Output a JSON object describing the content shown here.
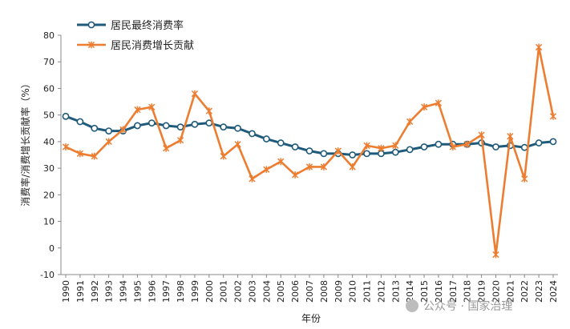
{
  "chart_data": {
    "type": "line",
    "xlabel": "年份",
    "ylabel": "消费率/消费增长贡献率（%）",
    "ylim": [
      -10,
      80
    ],
    "yticks": [
      -10,
      0,
      10,
      20,
      30,
      40,
      50,
      60,
      70,
      80
    ],
    "grid": false,
    "legend_position": "top-left",
    "x": [
      "1990",
      "1991",
      "1992",
      "1993",
      "1994",
      "1995",
      "1996",
      "1997",
      "1998",
      "1999",
      "2000",
      "2001",
      "2002",
      "2003",
      "2004",
      "2005",
      "2006",
      "2007",
      "2008",
      "2009",
      "2010",
      "2011",
      "2012",
      "2013",
      "2014",
      "2015",
      "2016",
      "2017",
      "2018",
      "2019",
      "2020",
      "2021",
      "2022",
      "2023",
      "2024"
    ],
    "series": [
      {
        "name": "居民最终消费率",
        "color": "#1f5a7a",
        "marker": "circle",
        "values": [
          49.5,
          47.5,
          45,
          44,
          44,
          46,
          47,
          46,
          45.5,
          46.5,
          47,
          45.5,
          45,
          43,
          41,
          39.5,
          38,
          36.5,
          35.5,
          35.5,
          35,
          35.5,
          35.5,
          36,
          37,
          38,
          39,
          39,
          39,
          39.5,
          38,
          38.5,
          37.8,
          39.5,
          40
        ]
      },
      {
        "name": "居民消费增长贡献",
        "color": "#ed7d31",
        "marker": "x",
        "values": [
          38,
          35.5,
          34.5,
          40,
          44.5,
          52,
          53,
          37.5,
          40.5,
          58,
          51.5,
          34.5,
          39,
          26,
          29.5,
          32.5,
          27.5,
          30.5,
          30.5,
          36.5,
          30.5,
          38.5,
          37.5,
          38.5,
          47.5,
          53,
          54.5,
          38,
          39,
          42.5,
          -2.5,
          42,
          26,
          75.5,
          49.5
        ]
      }
    ]
  },
  "watermark": "公众号 · 国家治理"
}
